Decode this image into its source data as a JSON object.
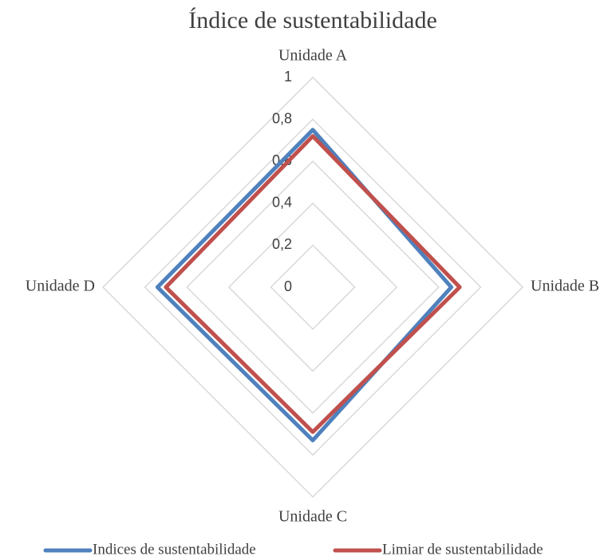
{
  "chart_data": {
    "type": "radar",
    "title": "Índice de sustentabilidade",
    "categories": [
      "Unidade A",
      "Unidade B",
      "Unidade C",
      "Unidade D"
    ],
    "series": [
      {
        "name": "Indices de sustentabilidade",
        "color": "#4f81bd",
        "values": [
          0.75,
          0.66,
          0.73,
          0.74
        ]
      },
      {
        "name": "Limiar de sustentabilidade",
        "color": "#c0504d",
        "values": [
          0.72,
          0.7,
          0.69,
          0.7
        ]
      }
    ],
    "ylim": [
      0,
      1
    ],
    "yticks": [
      0,
      {
        "value": 0.2,
        "label": "0,2"
      },
      {
        "value": 0.4,
        "label": "0,4"
      },
      {
        "value": 0.6,
        "label": "0,6"
      },
      {
        "value": 0.8,
        "label": "0,8"
      },
      1
    ],
    "grid": true,
    "legend": "bottom"
  }
}
